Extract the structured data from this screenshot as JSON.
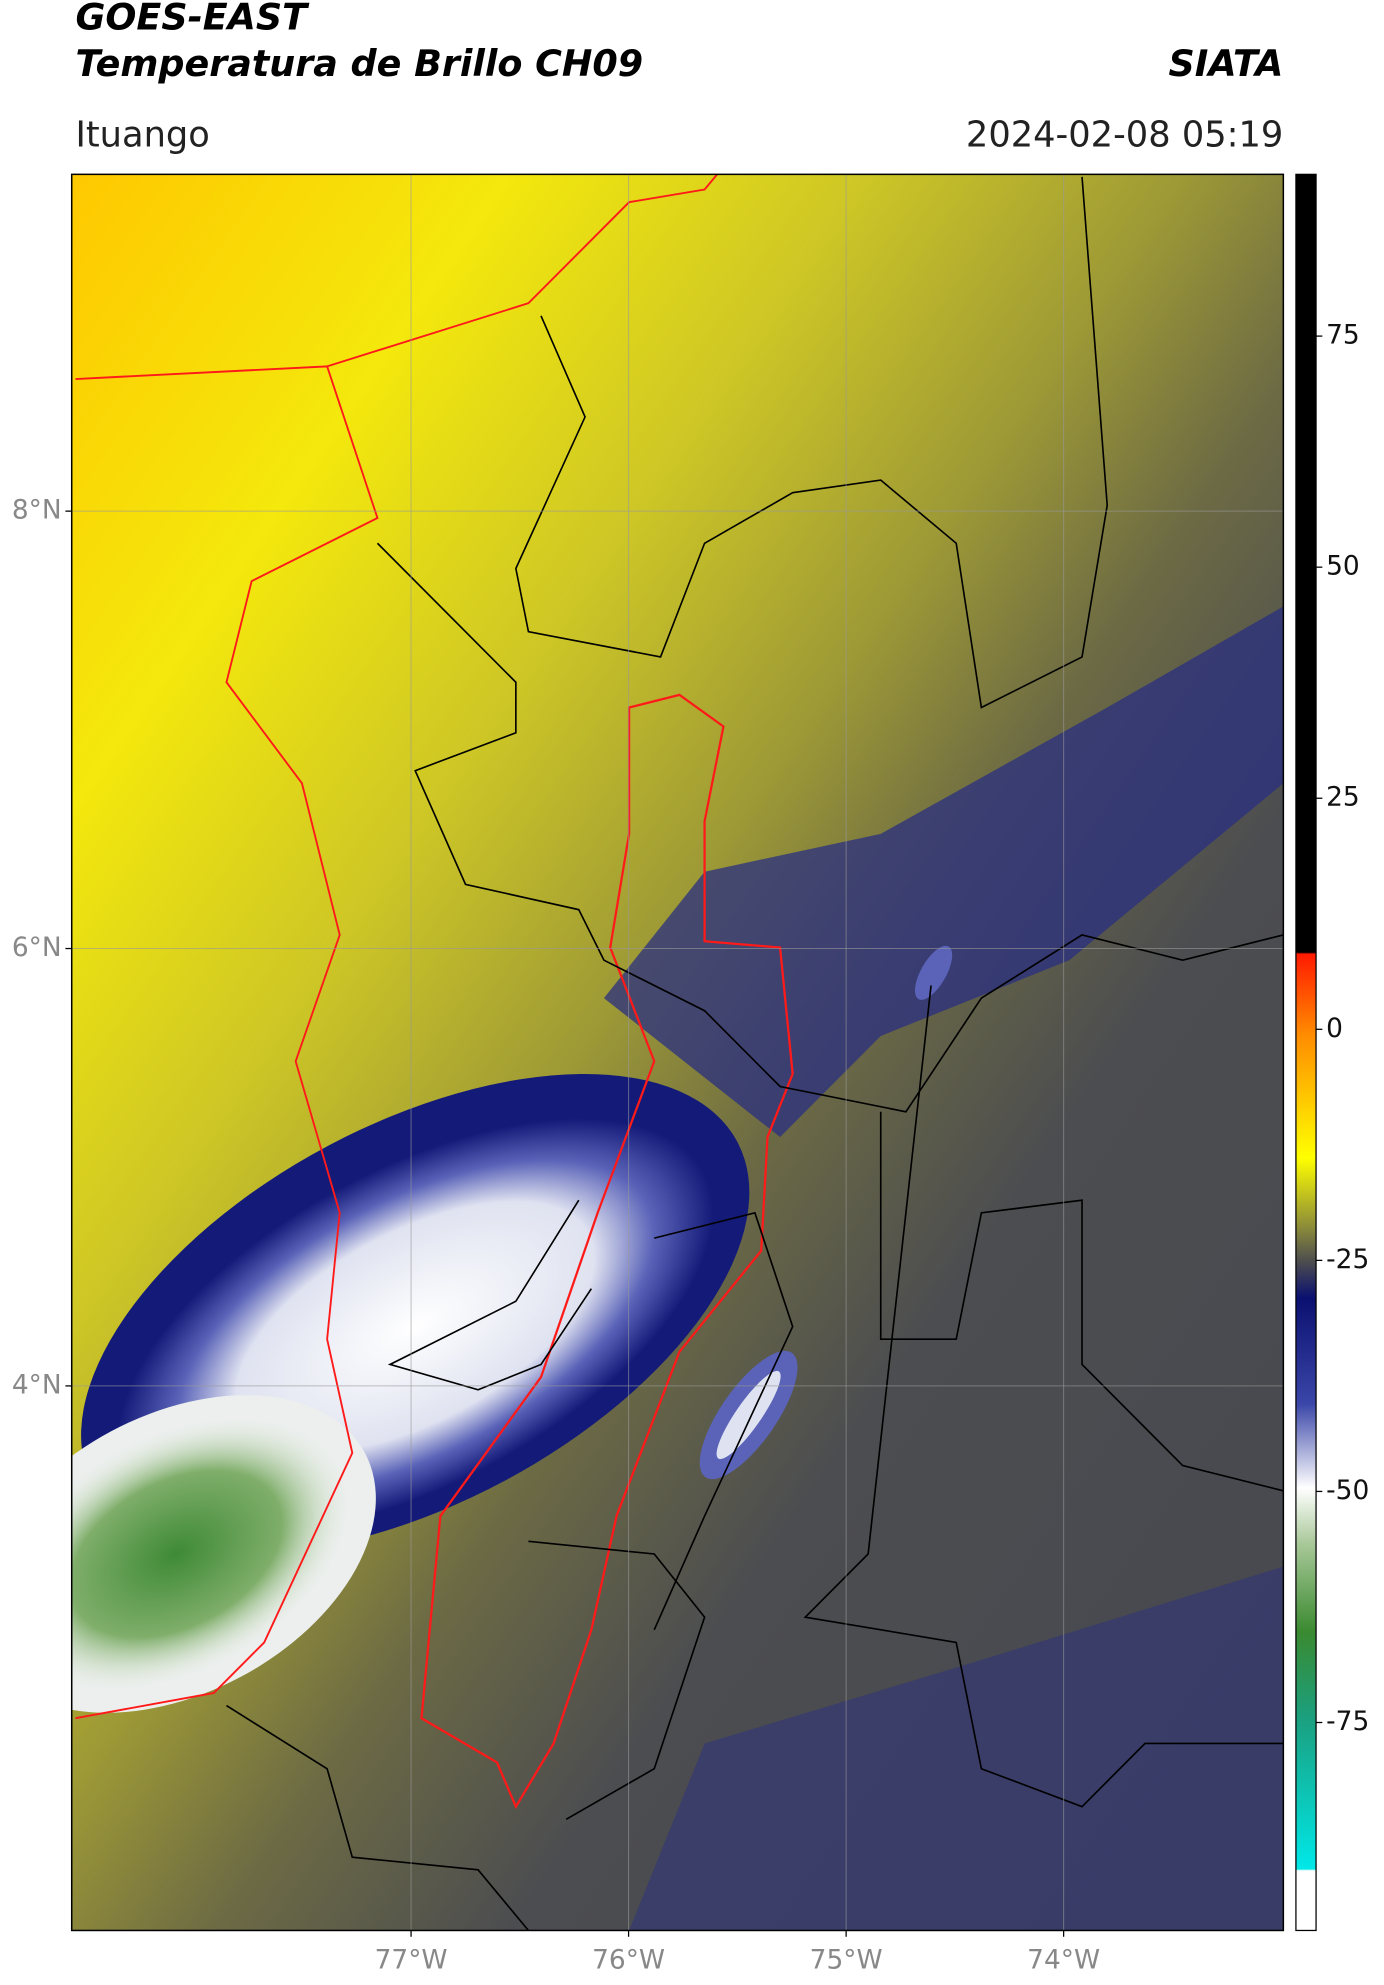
{
  "map": {
    "title": "GOES-EAST",
    "subtitle": "Temperatura de Brillo CH09",
    "credit": "SIATA",
    "location": "Ituango",
    "datetime": "2024-02-08 05:19",
    "xlim": [
      -78.56,
      -72.99
    ],
    "ylim": [
      1.51,
      9.54
    ],
    "xticks": [
      {
        "value": -77,
        "label": "77°W"
      },
      {
        "value": -76,
        "label": "76°W"
      },
      {
        "value": -75,
        "label": "75°W"
      },
      {
        "value": -74,
        "label": "74°W"
      }
    ],
    "yticks": [
      {
        "value": 8,
        "label": "8°N"
      },
      {
        "value": 6,
        "label": "6°N"
      },
      {
        "value": 4,
        "label": "4°N"
      }
    ],
    "grid": true,
    "colorbar": {
      "clim": [
        -97.5,
        92.5
      ],
      "ticks": [
        75,
        50,
        25,
        0,
        -25,
        -50,
        -75
      ]
    }
  }
}
